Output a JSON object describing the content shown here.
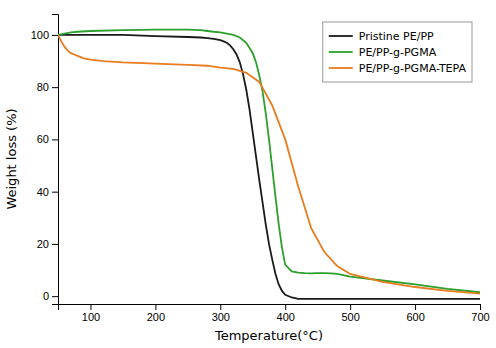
{
  "chart_data": {
    "type": "line",
    "xlabel": "Temperature(°C)",
    "ylabel": "Weight loss (%)",
    "xlim": [
      50,
      700
    ],
    "ylim": [
      -3,
      108
    ],
    "xticks": [
      100,
      200,
      300,
      400,
      500,
      600,
      700
    ],
    "yticks": [
      0,
      20,
      40,
      60,
      80,
      100
    ],
    "grid": false,
    "legend": "upper right",
    "series": [
      {
        "name": "Pristine PE/PP",
        "color": "#1a1a1a",
        "x": [
          50,
          60,
          70,
          80,
          100,
          150,
          200,
          250,
          270,
          280,
          290,
          300,
          305,
          310,
          315,
          320,
          325,
          330,
          335,
          340,
          345,
          350,
          355,
          360,
          365,
          370,
          375,
          380,
          385,
          390,
          395,
          400,
          410,
          420,
          430,
          700
        ],
        "values": [
          100,
          100,
          100,
          100,
          100,
          100,
          99.5,
          99.2,
          99.0,
          98.8,
          98.5,
          98.0,
          97.5,
          97.0,
          96.0,
          94.5,
          92.5,
          89.5,
          85.0,
          79.0,
          71.5,
          62.5,
          53.5,
          44.5,
          36.0,
          27.5,
          20.0,
          14.0,
          8.5,
          4.5,
          2.0,
          0.5,
          -0.5,
          -1.0,
          -1.0,
          -1.0
        ]
      },
      {
        "name": "PE/PP-g-PGMA",
        "color": "#2ca02c",
        "x": [
          50,
          60,
          70,
          80,
          100,
          150,
          200,
          250,
          270,
          280,
          290,
          300,
          310,
          320,
          330,
          340,
          350,
          355,
          360,
          365,
          370,
          375,
          380,
          385,
          390,
          395,
          400,
          410,
          420,
          430,
          440,
          450,
          460,
          470,
          480,
          500,
          550,
          600,
          650,
          700
        ],
        "values": [
          100,
          100.5,
          101.0,
          101.2,
          101.5,
          101.8,
          102.0,
          102.0,
          101.8,
          101.5,
          101.2,
          101.0,
          100.5,
          100.0,
          99.0,
          97.0,
          93.0,
          89.5,
          84.5,
          78.5,
          70.0,
          60.0,
          49.0,
          38.0,
          27.5,
          18.5,
          12.0,
          9.5,
          9.0,
          8.8,
          8.7,
          8.8,
          8.8,
          8.7,
          8.5,
          7.5,
          6.0,
          4.5,
          2.8,
          1.5
        ]
      },
      {
        "name": "PE/PP-g-PGMA-TEPA",
        "color": "#e87c1e",
        "x": [
          50,
          55,
          60,
          65,
          70,
          75,
          80,
          90,
          100,
          120,
          150,
          180,
          200,
          220,
          250,
          280,
          300,
          320,
          340,
          360,
          380,
          400,
          420,
          440,
          460,
          480,
          500,
          550,
          600,
          650,
          700
        ],
        "values": [
          100,
          97.5,
          95.5,
          94.0,
          93.0,
          92.5,
          92.0,
          91.0,
          90.5,
          90.0,
          89.5,
          89.2,
          89.0,
          88.8,
          88.5,
          88.2,
          87.5,
          87.0,
          85.5,
          82.0,
          73.0,
          60.0,
          42.0,
          26.0,
          17.0,
          11.5,
          8.5,
          5.5,
          3.5,
          2.0,
          1.0
        ]
      }
    ]
  }
}
